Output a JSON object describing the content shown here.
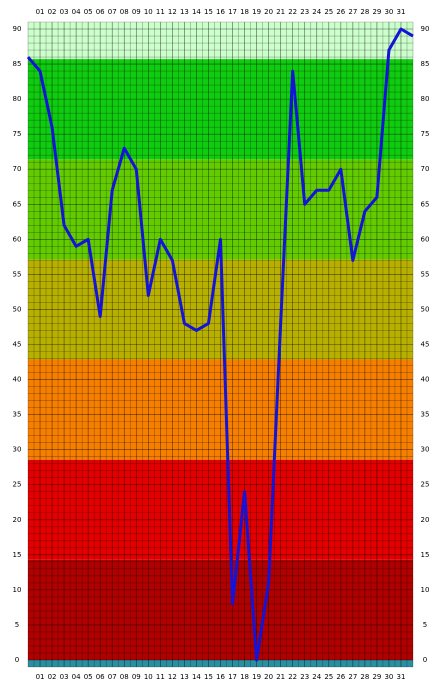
{
  "chart_data": {
    "type": "line",
    "x": [
      0,
      1,
      2,
      3,
      4,
      5,
      6,
      7,
      8,
      9,
      10,
      11,
      12,
      13,
      14,
      15,
      16,
      17,
      18,
      19,
      20,
      21,
      22,
      23,
      24,
      25,
      26,
      27,
      28,
      29,
      30,
      31,
      32
    ],
    "series": [
      {
        "color": "#1414d8",
        "values": [
          86,
          84,
          76,
          62,
          59,
          60,
          49,
          67,
          73,
          70,
          52,
          60,
          57,
          48,
          47,
          48,
          60,
          8,
          24,
          0,
          11,
          48,
          84,
          65,
          67,
          67,
          70,
          57,
          64,
          66,
          87,
          90,
          89
        ]
      }
    ],
    "xlim": [
      0,
      32
    ],
    "xticks": [
      {
        "value": 1,
        "label": "01"
      },
      {
        "value": 2,
        "label": "02"
      },
      {
        "value": 3,
        "label": "03"
      },
      {
        "value": 4,
        "label": "04"
      },
      {
        "value": 5,
        "label": "05"
      },
      {
        "value": 6,
        "label": "06"
      },
      {
        "value": 7,
        "label": "07"
      },
      {
        "value": 8,
        "label": "08"
      },
      {
        "value": 9,
        "label": "09"
      },
      10,
      11,
      12,
      13,
      14,
      15,
      16,
      17,
      18,
      19,
      20,
      21,
      22,
      23,
      24,
      25,
      26,
      27,
      28,
      29,
      30,
      31
    ],
    "ylim": [
      -1,
      91
    ],
    "yticks": [
      0,
      5,
      10,
      15,
      20,
      25,
      30,
      35,
      40,
      45,
      50,
      55,
      60,
      65,
      70,
      75,
      80,
      85,
      90
    ],
    "grid": true,
    "x_minor_step": 0.5,
    "y_minor_step": 1,
    "bands": [
      {
        "from": -1,
        "to": 0,
        "color": "#2a8fa0"
      },
      {
        "from": 0,
        "to": 14.29,
        "color": "#b00000"
      },
      {
        "from": 14.29,
        "to": 28.57,
        "color": "#e40000"
      },
      {
        "from": 28.57,
        "to": 42.86,
        "color": "#f77f00"
      },
      {
        "from": 42.86,
        "to": 57.14,
        "color": "#b8b000"
      },
      {
        "from": 57.14,
        "to": 71.43,
        "color": "#62cc00"
      },
      {
        "from": 71.43,
        "to": 85.71,
        "color": "#10cc10"
      },
      {
        "from": 85.71,
        "to": 91,
        "color": "#ccffcc"
      }
    ]
  }
}
